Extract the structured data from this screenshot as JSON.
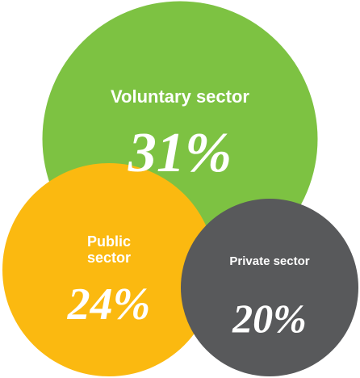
{
  "chart_data": {
    "type": "bubble",
    "categories": [
      "Voluntary sector",
      "Public sector",
      "Private sector"
    ],
    "values": [
      31,
      24,
      20
    ],
    "value_labels": [
      "31%",
      "24%",
      "20%"
    ],
    "colors": [
      "#7dc242",
      "#fbb910",
      "#58595b"
    ]
  }
}
